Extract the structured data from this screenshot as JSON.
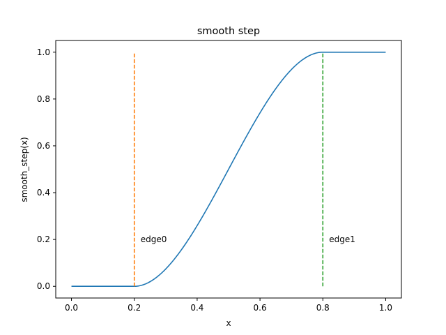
{
  "chart_data": {
    "type": "line",
    "title": "smooth step",
    "xlabel": "x",
    "ylabel": "smooth_step(x)",
    "xlim": [
      -0.05,
      1.05
    ],
    "ylim": [
      -0.05,
      1.05
    ],
    "xticks": [
      "0.0",
      "0.2",
      "0.4",
      "0.6",
      "0.8",
      "1.0"
    ],
    "yticks": [
      "0.0",
      "0.2",
      "0.4",
      "0.6",
      "0.8",
      "1.0"
    ],
    "grid": false,
    "series": [
      {
        "color": "#1f77b4",
        "style": "solid",
        "function": "smoothstep",
        "edge0": 0.2,
        "edge1": 0.8,
        "x_range": [
          0.0,
          1.0
        ]
      },
      {
        "color": "#ff7f0e",
        "style": "dashed",
        "x": [
          0.2,
          0.2
        ],
        "y": [
          0.0,
          1.0
        ]
      },
      {
        "color": "#2ca02c",
        "style": "dashed",
        "x": [
          0.8,
          0.8
        ],
        "y": [
          0.0,
          1.0
        ]
      }
    ],
    "annotations": [
      {
        "text": "edge0",
        "x": 0.22,
        "y": 0.2
      },
      {
        "text": "edge1",
        "x": 0.82,
        "y": 0.2
      }
    ]
  }
}
